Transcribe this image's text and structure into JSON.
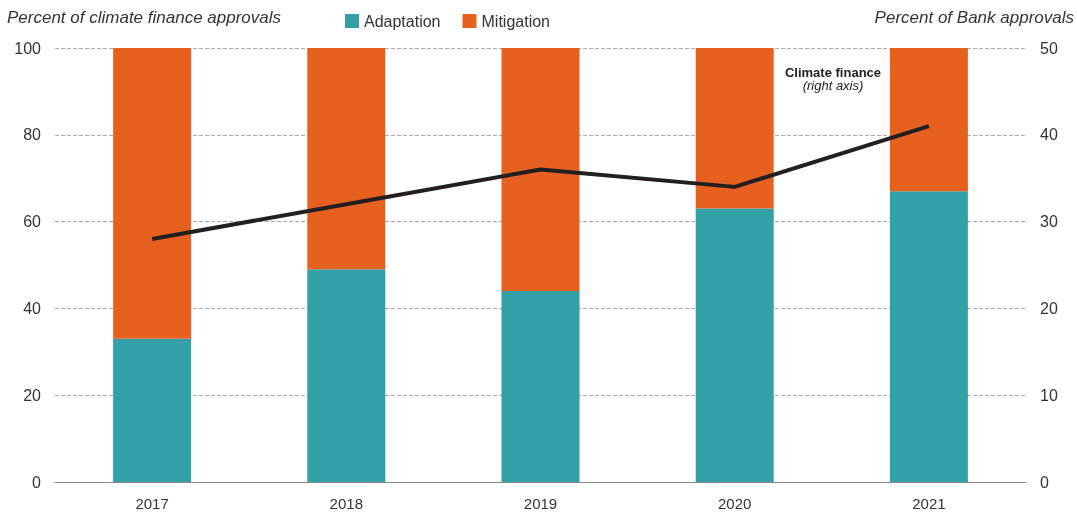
{
  "chart_data": {
    "type": "bar",
    "stacked": true,
    "ylabel": "Percent of climate finance approvals",
    "y2label": "Percent of Bank approvals",
    "categories": [
      "2017",
      "2018",
      "2019",
      "2020",
      "2021"
    ],
    "series": [
      {
        "name": "Adaptation",
        "color": "#339fa6",
        "values": [
          33,
          49,
          44,
          63,
          67
        ]
      },
      {
        "name": "Mitigation",
        "color": "#e66020",
        "values": [
          67,
          51,
          56,
          37,
          33
        ]
      },
      {
        "type": "line",
        "axis": "y2",
        "color": "#231f20",
        "values": [
          28,
          32,
          36,
          34,
          41
        ]
      }
    ],
    "ylim": [
      0,
      100
    ],
    "yticks": [
      0,
      20,
      40,
      60,
      80,
      100
    ],
    "y2lim": [
      0,
      50
    ],
    "y2ticks": [
      0,
      10,
      20,
      30,
      40,
      50
    ],
    "grid": "y",
    "legend": "top",
    "marker": "none",
    "annotations": [
      "Climate finance\n(right axis)"
    ]
  }
}
